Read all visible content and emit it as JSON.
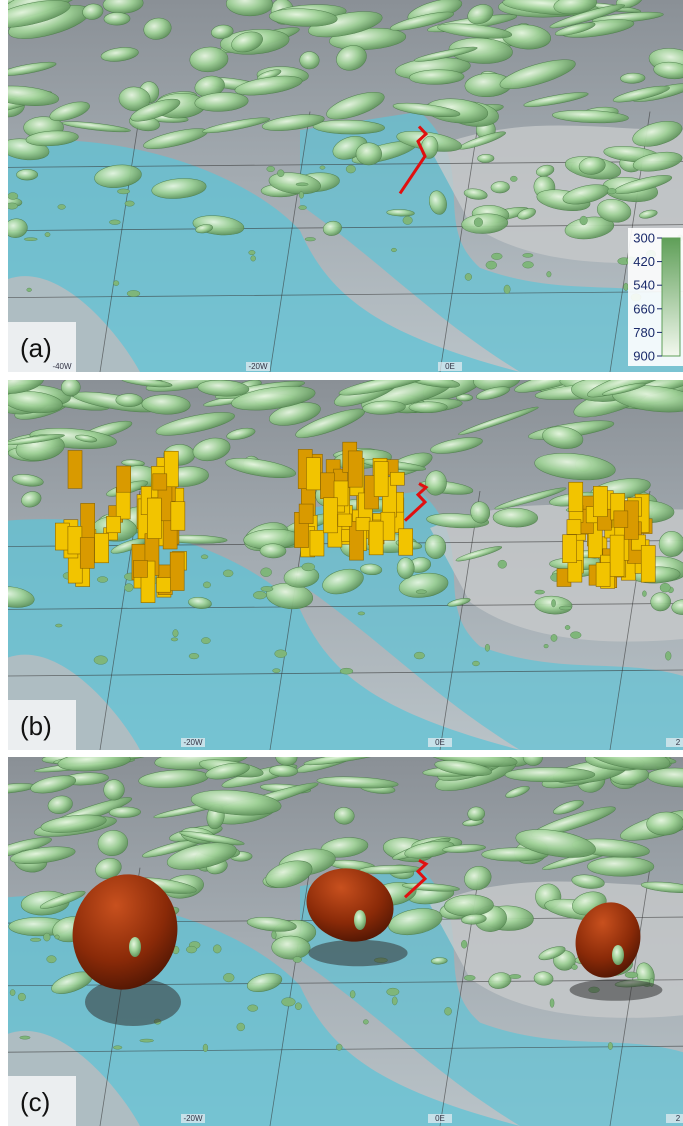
{
  "panels": [
    {
      "label": "(a)",
      "lon_labels": [
        "-40W",
        "-20W",
        "0E"
      ]
    },
    {
      "label": "(b)",
      "lon_labels": [
        "-20W",
        "0E",
        "2"
      ]
    },
    {
      "label": "(c)",
      "lon_labels": [
        "-20W",
        "0E",
        "2"
      ]
    }
  ],
  "colorbar": {
    "ticks": [
      300,
      420,
      540,
      660,
      780,
      900
    ]
  }
}
